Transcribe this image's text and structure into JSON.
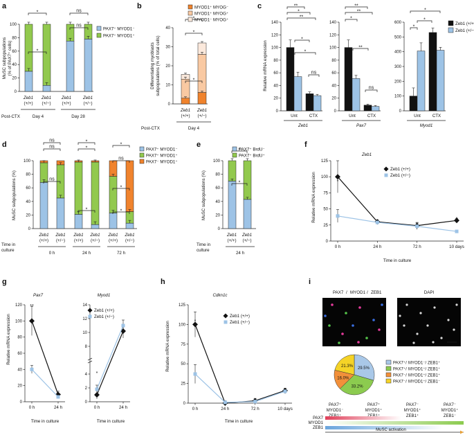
{
  "colors": {
    "blue": "#9dc3e6",
    "green": "#92c94e",
    "orange": "#f0832d",
    "peach": "#f9c9a2",
    "light": "#fbe9dc",
    "black": "#111111",
    "lightblue": "#9dc3e6",
    "pie_blue": "#a9c8e8",
    "pie_green": "#8ccb4f",
    "pie_orange": "#f2903a",
    "pie_yellow": "#f5d327"
  },
  "panel_labels": [
    "a",
    "b",
    "c",
    "d",
    "e",
    "f",
    "g",
    "h",
    "i"
  ],
  "genotypes": {
    "wt": "Zeb1",
    "wt_sub": "(+/+)",
    "het": "Zeb1",
    "het_sub": "(+/−)"
  },
  "panel_a": {
    "ylabel": "MuSC subpopulations\n(% of PAX7⁺ cells)",
    "ylabel_line1": "MuSC subpopulations",
    "ylabel_line2": "(% of PAX7⁺ cells)",
    "yticks": [
      "0",
      "20",
      "40",
      "60",
      "80",
      "100"
    ],
    "legend": [
      "PAX7⁺ MYOD1⁻",
      "PAX7⁺ MYOD1⁺"
    ],
    "xgroup_label": "Post-CTX",
    "groups": [
      "Day 4",
      "Day 28"
    ],
    "sig": [
      "*",
      "ns",
      "*",
      "ns"
    ]
  },
  "panel_b": {
    "ylabel_line1": "Differentiating myoblasts",
    "ylabel_line2": "subpopulations (% of total cells)",
    "yticks": [
      "0",
      "10",
      "20",
      "30",
      "40"
    ],
    "legend": [
      "MYOD1⁺ MYOG⁻",
      "MYOD1⁺ MYOG⁺",
      "MYOD1⁻ MYOG⁺"
    ],
    "xgroup_label": "Post-CTX",
    "groups": [
      "Day 4"
    ],
    "sig": [
      "*",
      "*",
      "*"
    ]
  },
  "panel_c": {
    "ylabel": "Relative mRNA expression",
    "genes": [
      "Zeb1",
      "Pax7",
      "Myod1"
    ],
    "conditions": [
      "Unt",
      "CTX"
    ],
    "yticks_1": [
      "0",
      "20",
      "40",
      "60",
      "80",
      "100",
      "120",
      "140"
    ],
    "yticks_3": [
      "0",
      "100",
      "200",
      "300",
      "400",
      "500",
      "600"
    ],
    "legend": [
      "Zeb1 (+/+)",
      "Zeb1 (+/−)"
    ],
    "sig": [
      "**",
      "*",
      "**",
      "*",
      "*",
      "ns",
      "**",
      "**",
      "*",
      "**",
      "ns",
      "*",
      "*",
      "*"
    ]
  },
  "panel_d": {
    "ylabel": "MuSC subpopulations (%)",
    "yticks": [
      "0",
      "20",
      "40",
      "60",
      "80",
      "100"
    ],
    "legend": [
      "PAX7⁺ MYOD1⁻",
      "PAX7⁺ MYOD1⁺",
      "PAX7⁻ MYOD1⁺"
    ],
    "xgroup_label_1": "Time in",
    "xgroup_label_2": "culture",
    "groups": [
      "0 h",
      "24 h",
      "72 h"
    ],
    "sig": [
      "ns",
      "ns",
      "*",
      "*",
      "ns",
      "*",
      "*",
      "ns",
      "*",
      "*"
    ]
  },
  "panel_e": {
    "ylabel": "MuSC subpopulations (%)",
    "yticks": [
      "0",
      "20",
      "40",
      "60",
      "80",
      "100"
    ],
    "legend": [
      "PAX7⁺ BrdU⁻",
      "PAX7⁺ BrdU⁺"
    ],
    "xgroup_label_1": "Time in",
    "xgroup_label_2": "culture",
    "groups": [
      "24 h"
    ],
    "sig": [
      "*",
      "*"
    ]
  },
  "panel_f": {
    "title": "Zeb1",
    "ylabel": "Relative mRNA expression",
    "xlabel": "Time in culture",
    "yticks": [
      "0",
      "25",
      "50",
      "75",
      "100",
      "125"
    ],
    "xticks": [
      "0 h",
      "24 h",
      "72 h",
      "10 days"
    ],
    "legend": [
      "Zeb1 (+/+)",
      "Zeb1 (+/−)"
    ],
    "sig": [
      "*",
      "*"
    ]
  },
  "panel_g": {
    "genes": [
      "Pax7",
      "Myod1"
    ],
    "ylabel": "Relative mRNA expression",
    "xlabel": "Time in culture",
    "xticks": [
      "0 h",
      "24 h"
    ],
    "yticks_1": [
      "0",
      "20",
      "40",
      "60",
      "80",
      "100",
      "120"
    ],
    "yticks_2": [
      "0",
      "2",
      "4",
      "8",
      "10",
      "12",
      "14"
    ],
    "legend": [
      "Zeb1 (+/+)",
      "Zeb1 (+/−)"
    ],
    "sig": [
      "**",
      "*"
    ]
  },
  "panel_h": {
    "title": "Cdkn1c",
    "ylabel": "Relative mRNA expression",
    "xlabel": "Time in culture",
    "yticks": [
      "0",
      "25",
      "50",
      "75",
      "100",
      "125"
    ],
    "xticks": [
      "0 h",
      "24 h",
      "72 h",
      "10 days"
    ],
    "legend": [
      "Zeb1 (+/+)",
      "Zeb1 (+/−)"
    ],
    "sig": [
      "*"
    ]
  },
  "panel_i": {
    "title_pax7": "PAX7",
    "title_myod1": "MYOD1",
    "title_zeb1": "ZEB1",
    "title_sep": " / ",
    "dapi": "DAPI",
    "pie_labels": [
      "29.5%",
      "33.2%",
      "16.0%",
      "21.3%"
    ],
    "legend": [
      [
        "PAX7⁺",
        "MYOD1⁻",
        "ZEB1⁺"
      ],
      [
        "PAX7⁺",
        "MYOD1⁺",
        "ZEB1⁺"
      ],
      [
        "PAX7⁻",
        "MYOD1⁺",
        "ZEB1⁺"
      ],
      [
        "PAX7⁻",
        "MYOD1⁺",
        "ZEB1⁻"
      ]
    ],
    "stages": [
      [
        "PAX7⁺",
        "MYOD1⁻",
        "ZEB1⁺"
      ],
      [
        "PAX7⁺",
        "MYOD1⁺",
        "ZEB1⁺"
      ],
      [
        "PAX7⁻",
        "MYOD1⁺",
        "ZEB1⁺"
      ],
      [
        "PAX7⁻",
        "MYOD1⁺",
        "ZEB1⁻"
      ]
    ],
    "bar_labels": [
      "PAX7",
      "MYOD1",
      "ZEB1"
    ],
    "arrow_label": "MuSC activation"
  },
  "chart_data": [
    {
      "panel": "a",
      "type": "bar",
      "stacked": true,
      "categories": [
        "Day 4 (+/+)",
        "Day 4 (+/−)",
        "Day 28 (+/+)",
        "Day 28 (+/−)"
      ],
      "series": [
        {
          "name": "PAX7⁺ MYOD1⁻",
          "values": [
            30,
            9,
            75,
            78
          ]
        },
        {
          "name": "PAX7⁺ MYOD1⁺",
          "values": [
            70,
            91,
            25,
            22
          ]
        }
      ],
      "ylim": [
        0,
        100
      ]
    },
    {
      "panel": "b",
      "type": "bar",
      "stacked": true,
      "categories": [
        "Day 4 (+/+)",
        "Day 4 (+/−)"
      ],
      "series": [
        {
          "name": "MYOD1⁺ MYOG⁻",
          "values": [
            3,
            6
          ]
        },
        {
          "name": "MYOD1⁺ MYOG⁺",
          "values": [
            10,
            20
          ]
        },
        {
          "name": "MYOD1⁻ MYOG⁺",
          "values": [
            2.5,
            6
          ]
        }
      ],
      "ylim": [
        0,
        40
      ]
    },
    {
      "panel": "c-Zeb1",
      "type": "bar",
      "categories": [
        "Unt",
        "CTX"
      ],
      "series": [
        {
          "name": "Zeb1 (+/+)",
          "values": [
            100,
            27
          ]
        },
        {
          "name": "Zeb1 (+/−)",
          "values": [
            54,
            24
          ]
        }
      ],
      "ylim": [
        0,
        140
      ]
    },
    {
      "panel": "c-Pax7",
      "type": "bar",
      "categories": [
        "Unt",
        "CTX"
      ],
      "series": [
        {
          "name": "Zeb1 (+/+)",
          "values": [
            100,
            9
          ]
        },
        {
          "name": "Zeb1 (+/−)",
          "values": [
            51,
            7
          ]
        }
      ],
      "ylim": [
        0,
        140
      ]
    },
    {
      "panel": "c-Myod1",
      "type": "bar",
      "categories": [
        "Unt",
        "CTX"
      ],
      "series": [
        {
          "name": "Zeb1 (+/+)",
          "values": [
            100,
            530
          ]
        },
        {
          "name": "Zeb1 (+/−)",
          "values": [
            405,
            410
          ]
        }
      ],
      "ylim": [
        0,
        600
      ]
    },
    {
      "panel": "d",
      "type": "bar",
      "stacked": true,
      "categories": [
        "0 h (+/+)",
        "0 h (+/−)",
        "24 h (+/+)",
        "24 h (+/−)",
        "72 h (+/+)",
        "72 h (+/−)"
      ],
      "series": [
        {
          "name": "PAX7⁺ MYOD1⁻",
          "values": [
            68,
            45,
            21,
            6,
            23,
            8
          ]
        },
        {
          "name": "PAX7⁺ MYOD1⁺",
          "values": [
            29,
            49,
            77,
            92,
            54,
            17
          ]
        },
        {
          "name": "PAX7⁻ MYOD1⁺",
          "values": [
            3,
            6,
            2,
            2,
            23,
            75
          ]
        }
      ],
      "ylim": [
        0,
        100
      ]
    },
    {
      "panel": "e",
      "type": "bar",
      "stacked": true,
      "categories": [
        "24 h (+/+)",
        "24 h (+/−)"
      ],
      "series": [
        {
          "name": "PAX7⁺ BrdU⁻",
          "values": [
            70,
            43
          ]
        },
        {
          "name": "PAX7⁺ BrdU⁺",
          "values": [
            30,
            57
          ]
        }
      ],
      "ylim": [
        0,
        100
      ]
    },
    {
      "panel": "f",
      "type": "line",
      "x": [
        "0 h",
        "24 h",
        "72 h",
        "10 days"
      ],
      "series": [
        {
          "name": "Zeb1 (+/+)",
          "values": [
            100,
            30,
            24,
            32
          ]
        },
        {
          "name": "Zeb1 (+/−)",
          "values": [
            39,
            29,
            23,
            15
          ]
        }
      ],
      "ylim": [
        0,
        125
      ]
    },
    {
      "panel": "g-Pax7",
      "type": "line",
      "x": [
        "0 h",
        "24 h"
      ],
      "series": [
        {
          "name": "Zeb1 (+/+)",
          "values": [
            100,
            9
          ]
        },
        {
          "name": "Zeb1 (+/−)",
          "values": [
            40,
            6
          ]
        }
      ],
      "ylim": [
        0,
        120
      ]
    },
    {
      "panel": "g-Myod1",
      "type": "line",
      "x": [
        "0 h",
        "24 h"
      ],
      "series": [
        {
          "name": "Zeb1 (+/+)",
          "values": [
            1,
            10.2
          ]
        },
        {
          "name": "Zeb1 (+/−)",
          "values": [
            1.8,
            11
          ]
        }
      ],
      "ylim": [
        0,
        14
      ]
    },
    {
      "panel": "h",
      "type": "line",
      "x": [
        "0 h",
        "24 h",
        "72 h",
        "10 days"
      ],
      "series": [
        {
          "name": "Zeb1 (+/+)",
          "values": [
            100,
            0,
            3,
            16
          ]
        },
        {
          "name": "Zeb1 (+/−)",
          "values": [
            37,
            1,
            2,
            15
          ]
        }
      ],
      "ylim": [
        0,
        125
      ]
    },
    {
      "panel": "i",
      "type": "pie",
      "categories": [
        "PAX7⁺/MYOD1⁻/ZEB1⁺",
        "PAX7⁺/MYOD1⁺/ZEB1⁺",
        "PAX7⁻/MYOD1⁺/ZEB1⁺",
        "PAX7⁻/MYOD1⁺/ZEB1⁻"
      ],
      "values": [
        29.5,
        33.2,
        16.0,
        21.3
      ]
    }
  ]
}
